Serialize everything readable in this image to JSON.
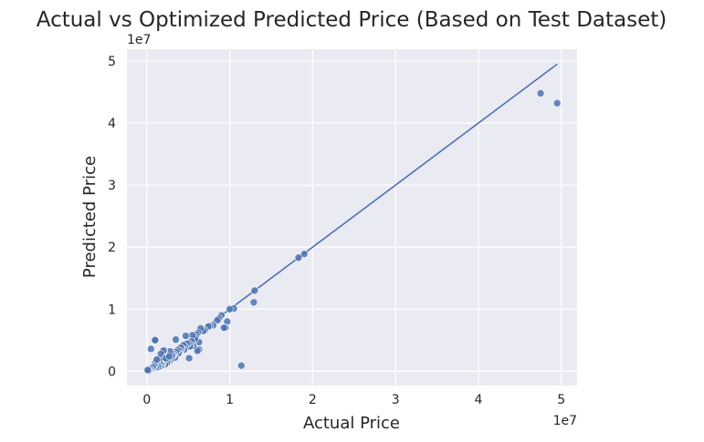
{
  "chart_data": {
    "type": "scatter",
    "title": "Actual vs Optimized Predicted Price (Based on Test Dataset)",
    "xlabel": "Actual Price",
    "ylabel": "Predicted Price",
    "x_offset_label": "1e7",
    "y_offset_label": "1e7",
    "xlim": [
      -2400000,
      51900000
    ],
    "ylim": [
      -2300000,
      51900000
    ],
    "x_ticks": [
      0,
      10000000,
      20000000,
      30000000,
      40000000,
      50000000
    ],
    "x_tick_labels": [
      "0",
      "1",
      "2",
      "3",
      "4",
      "5"
    ],
    "y_ticks": [
      0,
      10000000,
      20000000,
      30000000,
      40000000,
      50000000
    ],
    "y_tick_labels": [
      "0",
      "1",
      "2",
      "3",
      "4",
      "5"
    ],
    "grid": true,
    "reference_line": {
      "x": [
        0,
        49500000
      ],
      "y": [
        0,
        49500000
      ]
    },
    "colors": {
      "background": "#eaeaf2",
      "grid": "#ffffff",
      "marker": "#4c72b0",
      "line": "#4c72b0"
    },
    "series": [
      {
        "x": [
          49500000,
          47500000,
          19000000,
          18300000,
          13000000,
          12900000,
          11400000,
          10500000,
          10000000,
          9700000,
          9500000,
          9300000,
          9000000,
          8700000,
          8500000,
          8000000,
          7600000,
          7400000,
          7000000,
          6800000,
          6500000,
          6300000,
          6300000,
          6200000,
          6100000,
          6000000,
          5900000,
          5800000,
          5600000,
          5500000,
          5400000,
          5300000,
          5200000,
          5100000,
          5000000,
          4800000,
          4700000,
          4600000,
          4500000,
          4400000,
          4200000,
          4100000,
          4000000,
          3900000,
          3800000,
          3700000,
          3500000,
          3500000,
          3400000,
          3300000,
          3200000,
          3100000,
          3000000,
          2900000,
          2800000,
          2700000,
          2600000,
          2500000,
          2400000,
          2300000,
          2200000,
          2100000,
          2000000,
          2000000,
          1900000,
          1800000,
          1700000,
          1600000,
          1500000,
          1500000,
          1400000,
          1300000,
          1200000,
          1100000,
          1000000,
          1000000,
          900000,
          800000,
          700000,
          500000,
          400000,
          300000,
          200000,
          100000,
          1000000,
          1200000,
          500000,
          1700000,
          2300000,
          2700000
        ],
        "y": [
          43200000,
          44800000,
          18900000,
          18300000,
          13000000,
          11100000,
          900000,
          10100000,
          10000000,
          8000000,
          7000000,
          7000000,
          9000000,
          8500000,
          8200000,
          7400000,
          7300000,
          7200000,
          6600000,
          6500000,
          6900000,
          4700000,
          3500000,
          6200000,
          3300000,
          5900000,
          5500000,
          5200000,
          4100000,
          5800000,
          4800000,
          4200000,
          4000000,
          2100000,
          4500000,
          4400000,
          5700000,
          4000000,
          3500000,
          4200000,
          3700000,
          3800000,
          3300000,
          3000000,
          2900000,
          3400000,
          5100000,
          3100000,
          2200000,
          2800000,
          2600000,
          2600000,
          2400000,
          1800000,
          3200000,
          1600000,
          1900000,
          1500000,
          1300000,
          2100000,
          1100000,
          3400000,
          3300000,
          1600000,
          1000000,
          1200000,
          1100000,
          800000,
          1400000,
          2000000,
          700000,
          900000,
          1500000,
          600000,
          1300000,
          5100000,
          800000,
          500000,
          600000,
          300000,
          400000,
          200000,
          100000,
          200000,
          5000000,
          1900000,
          3600000,
          2800000,
          2100000,
          2400000
        ]
      }
    ]
  }
}
